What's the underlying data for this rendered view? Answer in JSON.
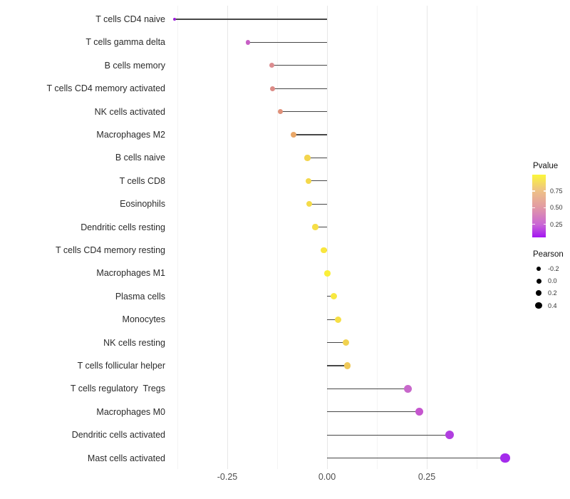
{
  "chart_data": {
    "type": "lollipop",
    "orientation": "horizontal",
    "title": "",
    "xlabel": "",
    "ylabel": "",
    "baseline": 0,
    "xlim": [
      -0.43,
      0.48
    ],
    "grid": "vertical only; major at -0.25/0.00/0.25, minor at -0.375/-0.125/0.125/0.375; light gray on white",
    "categories": [
      "T cells CD4 naive",
      "T cells gamma delta",
      "B cells memory",
      "T cells CD4 memory activated",
      "NK cells activated",
      "Macrophages M2",
      "B cells naive",
      "T cells CD8",
      "Eosinophils",
      "Dendritic cells resting",
      "T cells CD4 memory resting",
      "Macrophages M1",
      "Plasma cells",
      "Monocytes",
      "NK cells resting",
      "T cells follicular helper",
      "T cells regulatory  Tregs",
      "Macrophages M0",
      "Dendritic cells activated",
      "Mast cells activated"
    ],
    "series": [
      {
        "name": "Pearson",
        "values": [
          -0.382,
          -0.198,
          -0.139,
          -0.136,
          -0.117,
          -0.084,
          -0.049,
          -0.046,
          -0.044,
          -0.03,
          -0.008,
          0.001,
          0.017,
          0.027,
          0.047,
          0.051,
          0.202,
          0.231,
          0.307,
          0.446
        ]
      }
    ],
    "point_colors": [
      "#9C1FD8",
      "#C75FC5",
      "#DC8D90",
      "#DC8B86",
      "#E0917A",
      "#E9A768",
      "#F3D54E",
      "#F4D84B",
      "#F4DB49",
      "#F6DE46",
      "#F9E63E",
      "#FAEF39",
      "#F8E840",
      "#F6DF45",
      "#F1D250",
      "#EFC95A",
      "#C868CB",
      "#C556CE",
      "#B13EE0",
      "#A42BEC"
    ],
    "pvalue_estimated_from_color": [
      0.05,
      0.28,
      0.5,
      0.5,
      0.55,
      0.62,
      0.85,
      0.86,
      0.87,
      0.88,
      0.93,
      0.97,
      0.92,
      0.88,
      0.82,
      0.76,
      0.3,
      0.27,
      0.13,
      0.06
    ],
    "x_axis": {
      "tick_labels": [
        "-0.25",
        "0.00",
        "0.25"
      ],
      "tick_values": [
        -0.25,
        0.0,
        0.25
      ]
    }
  },
  "legend_pvalue": {
    "title": "Pvalue",
    "tick_labels": [
      "0.75",
      "0.50",
      "0.25"
    ],
    "tick_values": [
      0.75,
      0.5,
      0.25
    ],
    "range_top_to_bottom": [
      1.0,
      0.05
    ],
    "gradient_top_to_bottom": [
      "#FBF63A",
      "#EEC285",
      "#E29AA4",
      "#C966D6",
      "#A315F2"
    ]
  },
  "legend_pearson": {
    "title": "Pearson",
    "item_labels": [
      "-0.2",
      "0.0",
      "0.2",
      "0.4"
    ],
    "item_values": [
      -0.2,
      0.0,
      0.2,
      0.4
    ],
    "dot_color": "#000000"
  },
  "colors": {
    "background": "#ffffff",
    "stem": "#474747",
    "grid_major": "#e7e7e7",
    "grid_minor": "#f4f4f4",
    "axis_text": "#4d4d4d",
    "category_text": "#2b2b2b"
  }
}
